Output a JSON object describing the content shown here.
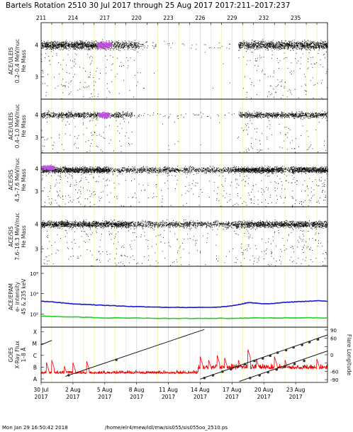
{
  "header": {
    "title": "Bartels Rotation 2510    30 Jul 2017 through 25 Aug 2017    2017:211–2017:237"
  },
  "footer": {
    "timestamp": "Mon Jan 29 16:50:42 2018",
    "path": "/home/elr4/mew/idl/mw/sis055/sis055oo_2510.ps"
  },
  "chart_data": {
    "type": "scatter",
    "x_range_days": [
      0,
      27
    ],
    "top_ticks": [
      {
        "day": 0,
        "label": "211"
      },
      {
        "day": 3,
        "label": "214"
      },
      {
        "day": 6,
        "label": "217"
      },
      {
        "day": 9,
        "label": "220"
      },
      {
        "day": 12,
        "label": "223"
      },
      {
        "day": 15,
        "label": "226"
      },
      {
        "day": 18,
        "label": "229"
      },
      {
        "day": 21,
        "label": "232"
      },
      {
        "day": 24,
        "label": "235"
      }
    ],
    "bottom_ticks": [
      {
        "day": 0,
        "label": "30 Jul",
        "year": "2017"
      },
      {
        "day": 3,
        "label": "2 Aug",
        "year": "2017"
      },
      {
        "day": 6,
        "label": "5 Aug",
        "year": "2017"
      },
      {
        "day": 9,
        "label": "8 Aug",
        "year": "2017"
      },
      {
        "day": 12,
        "label": "11 Aug",
        "year": "2017"
      },
      {
        "day": 15,
        "label": "14 Aug",
        "year": "2017"
      },
      {
        "day": 18,
        "label": "17 Aug",
        "year": "2017"
      },
      {
        "day": 21,
        "label": "20 Aug",
        "year": "2017"
      },
      {
        "day": 24,
        "label": "23 Aug",
        "year": "2017"
      }
    ],
    "panels": [
      {
        "id": "uleis-low",
        "ylabel": [
          "ACE/ULEIS",
          "0.2–0.4 MeV/nuc",
          "He Mass"
        ],
        "ylim": [
          2.3,
          4.7
        ],
        "yticks": [
          {
            "v": 3,
            "label": "3"
          },
          {
            "v": 4,
            "label": "4"
          }
        ],
        "center": 4.0,
        "segments": [
          {
            "from": 0,
            "to": 5.3,
            "density": 1.0
          },
          {
            "from": 5.3,
            "to": 9.2,
            "density": 0.6
          },
          {
            "from": 9.2,
            "to": 10.8,
            "density": 0.12
          },
          {
            "from": 10.8,
            "to": 18.6,
            "density": 0.02
          },
          {
            "from": 18.6,
            "to": 27,
            "density": 0.85
          }
        ],
        "highlight": [
          {
            "from": 5.3,
            "to": 6.6,
            "center": 4.0
          }
        ]
      },
      {
        "id": "uleis-mid",
        "ylabel": [
          "ACE/ULEIS",
          "0.4–1.0 MeV/nuc",
          "He Mass"
        ],
        "ylim": [
          2.3,
          4.7
        ],
        "yticks": [
          {
            "v": 3,
            "label": "3"
          },
          {
            "v": 4,
            "label": "4"
          }
        ],
        "center": 4.0,
        "segments": [
          {
            "from": 0,
            "to": 5.3,
            "density": 0.55
          },
          {
            "from": 5.3,
            "to": 8.6,
            "density": 0.4
          },
          {
            "from": 8.6,
            "to": 18.6,
            "density": 0.03
          },
          {
            "from": 18.6,
            "to": 27,
            "density": 0.55
          }
        ],
        "highlight": [
          {
            "from": 5.4,
            "to": 6.4,
            "center": 4.0
          }
        ]
      },
      {
        "id": "sis-low",
        "ylabel": [
          "ACE/SIS",
          "4.5–7.6 MeV/nuc",
          "He Mass"
        ],
        "ylim": [
          2.3,
          4.7
        ],
        "yticks": [
          {
            "v": 3,
            "label": "3"
          },
          {
            "v": 4,
            "label": "4"
          }
        ],
        "center": 3.95,
        "segments": [
          {
            "from": 0,
            "to": 6.5,
            "density": 1.0
          },
          {
            "from": 6.5,
            "to": 18.2,
            "density": 0.45
          },
          {
            "from": 18.2,
            "to": 22.8,
            "density": 1.0
          },
          {
            "from": 22.8,
            "to": 23.6,
            "density": 0.4
          },
          {
            "from": 23.6,
            "to": 27,
            "density": 1.0
          }
        ],
        "highlight": [
          {
            "from": 0,
            "to": 1.2,
            "center": 4.05
          }
        ]
      },
      {
        "id": "sis-high",
        "ylabel": [
          "ACE/SIS",
          "7.6–16.3 MeV/nuc",
          "He Mass"
        ],
        "ylim": [
          2.3,
          4.7
        ],
        "yticks": [
          {
            "v": 3,
            "label": "3"
          },
          {
            "v": 4,
            "label": "4"
          }
        ],
        "center": 4.0,
        "segments": [
          {
            "from": 0,
            "to": 8.5,
            "density": 0.85
          },
          {
            "from": 8.5,
            "to": 18.0,
            "density": 0.45
          },
          {
            "from": 18.0,
            "to": 27,
            "density": 0.8
          }
        ],
        "highlight": []
      },
      {
        "id": "epam",
        "type": "line",
        "ylabel": [
          "ACE/EPAM",
          "e- intensity",
          "45 & 235 keV"
        ],
        "yscale": "log",
        "ylim_log10": [
          0.7,
          6.7
        ],
        "yticks": [
          {
            "v": 2,
            "label": "10²"
          },
          {
            "v": 4,
            "label": "10⁴"
          },
          {
            "v": 6,
            "label": "10⁶"
          }
        ],
        "series": [
          {
            "name": "45 keV",
            "color": "#1a1acc",
            "x": [
              0,
              1,
              2,
              3,
              4,
              5,
              6,
              8,
              10,
              12,
              14,
              16,
              17,
              18,
              19,
              19.5,
              20,
              21,
              22,
              23,
              24,
              25,
              26,
              27
            ],
            "y": [
              3.25,
              3.2,
              3.1,
              3.0,
              2.95,
              2.9,
              2.85,
              2.75,
              2.7,
              2.65,
              2.65,
              2.65,
              2.7,
              2.8,
              3.0,
              3.12,
              3.1,
              3.0,
              3.05,
              3.15,
              3.2,
              3.25,
              3.3,
              3.25
            ]
          },
          {
            "name": "235 keV",
            "color": "#22cc22",
            "x": [
              0,
              3,
              6,
              10,
              15,
              18,
              20,
              24,
              27
            ],
            "y": [
              1.8,
              1.7,
              1.62,
              1.58,
              1.56,
              1.58,
              1.62,
              1.62,
              1.62
            ]
          }
        ]
      },
      {
        "id": "goes",
        "type": "line",
        "ylabel": [
          "GOES",
          "X-Ray Flux",
          "1–8 Å"
        ],
        "yticks_left": [
          {
            "v": -8,
            "label": "A"
          },
          {
            "v": -7,
            "label": "B"
          },
          {
            "v": -6,
            "label": "C"
          },
          {
            "v": -5,
            "label": "M"
          },
          {
            "v": -4,
            "label": "X"
          }
        ],
        "ylim_left": [
          -8.3,
          -3.6
        ],
        "ylabel_right": "Flare Longitude",
        "yticks_right": [
          {
            "v": -90,
            "label": "-90"
          },
          {
            "v": -60,
            "label": "-60"
          },
          {
            "v": -30,
            "label": ""
          },
          {
            "v": 0,
            "label": "0"
          },
          {
            "v": 30,
            "label": ""
          },
          {
            "v": 60,
            "label": "60"
          },
          {
            "v": 90,
            "label": "90"
          }
        ],
        "ylim_right": [
          -100,
          100
        ],
        "xray_flux": {
          "color": "#ee0000",
          "segments": [
            {
              "from": 0,
              "to": 14.8,
              "base": -7.55,
              "noise": 0.35
            },
            {
              "from": 14.8,
              "to": 27,
              "base": -7.15,
              "noise": 0.55
            }
          ],
          "peaks": [
            {
              "day": 0.5,
              "v": -6.6
            },
            {
              "day": 1.0,
              "v": -6.4
            },
            {
              "day": 2.2,
              "v": -6.9
            },
            {
              "day": 3.0,
              "v": -6.6
            },
            {
              "day": 4.3,
              "v": -6.5
            },
            {
              "day": 15.0,
              "v": -6.1
            },
            {
              "day": 15.8,
              "v": -6.4
            },
            {
              "day": 16.6,
              "v": -6.0
            },
            {
              "day": 17.3,
              "v": -6.2
            },
            {
              "day": 18.6,
              "v": -6.4
            },
            {
              "day": 19.5,
              "v": -5.5
            },
            {
              "day": 20.3,
              "v": -6.3
            },
            {
              "day": 22.0,
              "v": -6.1
            },
            {
              "day": 23.0,
              "v": -6.4
            },
            {
              "day": 26.0,
              "v": -6.3
            }
          ]
        },
        "longitude_lines": [
          {
            "from_day": 0,
            "from_lon": 36,
            "to_day": 1.0,
            "to_lon": 52
          },
          {
            "from_day": 2.3,
            "from_lon": -78,
            "to_day": 15.4,
            "to_lon": 92
          },
          {
            "from_day": 15.0,
            "from_lon": -88,
            "to_day": 27.0,
            "to_lon": 72
          },
          {
            "from_day": 18.7,
            "from_lon": -96,
            "to_day": 27.0,
            "to_lon": 14
          }
        ],
        "flare_points": [
          {
            "day": 2.6,
            "lon": -74
          },
          {
            "day": 7.1,
            "lon": -18
          },
          {
            "day": 15.4,
            "lon": -84
          },
          {
            "day": 16.2,
            "lon": -74
          },
          {
            "day": 17.1,
            "lon": -61
          },
          {
            "day": 17.9,
            "lon": -52
          },
          {
            "day": 18.6,
            "lon": -42
          },
          {
            "day": 19.2,
            "lon": -34
          },
          {
            "day": 20.1,
            "lon": -22
          },
          {
            "day": 20.9,
            "lon": -13
          },
          {
            "day": 21.6,
            "lon": -3
          },
          {
            "day": 22.3,
            "lon": 8
          },
          {
            "day": 23.1,
            "lon": 17
          },
          {
            "day": 23.8,
            "lon": 27
          },
          {
            "day": 24.6,
            "lon": 36
          },
          {
            "day": 25.3,
            "lon": 46
          },
          {
            "day": 26.1,
            "lon": 56
          },
          {
            "day": 19.7,
            "lon": -84
          },
          {
            "day": 20.6,
            "lon": -74
          },
          {
            "day": 21.4,
            "lon": -63
          },
          {
            "day": 22.2,
            "lon": -53
          },
          {
            "day": 23.0,
            "lon": -43
          },
          {
            "day": 23.9,
            "lon": -33
          },
          {
            "day": 24.8,
            "lon": -22
          }
        ]
      }
    ]
  }
}
